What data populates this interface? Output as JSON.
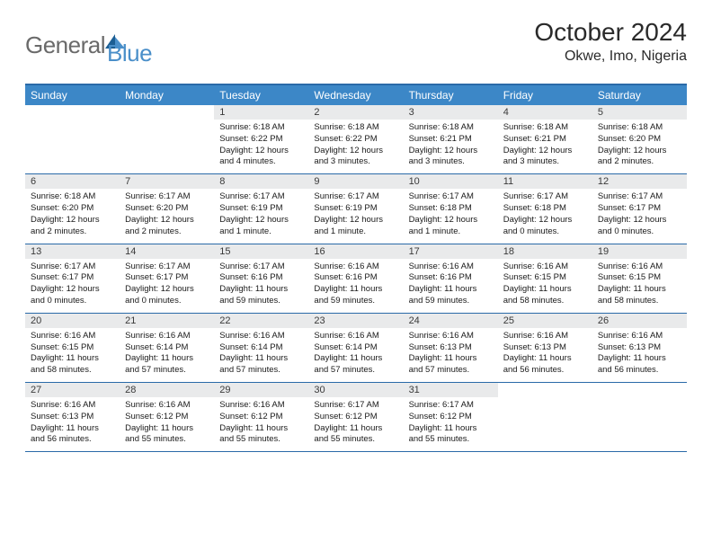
{
  "brand": {
    "text_gray": "General",
    "text_blue": "Blue"
  },
  "header": {
    "title": "October 2024",
    "subtitle": "Okwe, Imo, Nigeria"
  },
  "colors": {
    "header_bg": "#3c87c7",
    "header_text": "#ffffff",
    "daynum_bg": "#e9eaeb",
    "rule": "#2a6aa8",
    "logo_gray": "#6a6a6a",
    "logo_blue": "#4a8fc9",
    "sail_dark": "#1c5e93",
    "sail_light": "#4a8fc9"
  },
  "weekdays": [
    "Sunday",
    "Monday",
    "Tuesday",
    "Wednesday",
    "Thursday",
    "Friday",
    "Saturday"
  ],
  "weeks": [
    [
      null,
      null,
      {
        "n": "1",
        "sr": "6:18 AM",
        "ss": "6:22 PM",
        "dl": "12 hours and 4 minutes."
      },
      {
        "n": "2",
        "sr": "6:18 AM",
        "ss": "6:22 PM",
        "dl": "12 hours and 3 minutes."
      },
      {
        "n": "3",
        "sr": "6:18 AM",
        "ss": "6:21 PM",
        "dl": "12 hours and 3 minutes."
      },
      {
        "n": "4",
        "sr": "6:18 AM",
        "ss": "6:21 PM",
        "dl": "12 hours and 3 minutes."
      },
      {
        "n": "5",
        "sr": "6:18 AM",
        "ss": "6:20 PM",
        "dl": "12 hours and 2 minutes."
      }
    ],
    [
      {
        "n": "6",
        "sr": "6:18 AM",
        "ss": "6:20 PM",
        "dl": "12 hours and 2 minutes."
      },
      {
        "n": "7",
        "sr": "6:17 AM",
        "ss": "6:20 PM",
        "dl": "12 hours and 2 minutes."
      },
      {
        "n": "8",
        "sr": "6:17 AM",
        "ss": "6:19 PM",
        "dl": "12 hours and 1 minute."
      },
      {
        "n": "9",
        "sr": "6:17 AM",
        "ss": "6:19 PM",
        "dl": "12 hours and 1 minute."
      },
      {
        "n": "10",
        "sr": "6:17 AM",
        "ss": "6:18 PM",
        "dl": "12 hours and 1 minute."
      },
      {
        "n": "11",
        "sr": "6:17 AM",
        "ss": "6:18 PM",
        "dl": "12 hours and 0 minutes."
      },
      {
        "n": "12",
        "sr": "6:17 AM",
        "ss": "6:17 PM",
        "dl": "12 hours and 0 minutes."
      }
    ],
    [
      {
        "n": "13",
        "sr": "6:17 AM",
        "ss": "6:17 PM",
        "dl": "12 hours and 0 minutes."
      },
      {
        "n": "14",
        "sr": "6:17 AM",
        "ss": "6:17 PM",
        "dl": "12 hours and 0 minutes."
      },
      {
        "n": "15",
        "sr": "6:17 AM",
        "ss": "6:16 PM",
        "dl": "11 hours and 59 minutes."
      },
      {
        "n": "16",
        "sr": "6:16 AM",
        "ss": "6:16 PM",
        "dl": "11 hours and 59 minutes."
      },
      {
        "n": "17",
        "sr": "6:16 AM",
        "ss": "6:16 PM",
        "dl": "11 hours and 59 minutes."
      },
      {
        "n": "18",
        "sr": "6:16 AM",
        "ss": "6:15 PM",
        "dl": "11 hours and 58 minutes."
      },
      {
        "n": "19",
        "sr": "6:16 AM",
        "ss": "6:15 PM",
        "dl": "11 hours and 58 minutes."
      }
    ],
    [
      {
        "n": "20",
        "sr": "6:16 AM",
        "ss": "6:15 PM",
        "dl": "11 hours and 58 minutes."
      },
      {
        "n": "21",
        "sr": "6:16 AM",
        "ss": "6:14 PM",
        "dl": "11 hours and 57 minutes."
      },
      {
        "n": "22",
        "sr": "6:16 AM",
        "ss": "6:14 PM",
        "dl": "11 hours and 57 minutes."
      },
      {
        "n": "23",
        "sr": "6:16 AM",
        "ss": "6:14 PM",
        "dl": "11 hours and 57 minutes."
      },
      {
        "n": "24",
        "sr": "6:16 AM",
        "ss": "6:13 PM",
        "dl": "11 hours and 57 minutes."
      },
      {
        "n": "25",
        "sr": "6:16 AM",
        "ss": "6:13 PM",
        "dl": "11 hours and 56 minutes."
      },
      {
        "n": "26",
        "sr": "6:16 AM",
        "ss": "6:13 PM",
        "dl": "11 hours and 56 minutes."
      }
    ],
    [
      {
        "n": "27",
        "sr": "6:16 AM",
        "ss": "6:13 PM",
        "dl": "11 hours and 56 minutes."
      },
      {
        "n": "28",
        "sr": "6:16 AM",
        "ss": "6:12 PM",
        "dl": "11 hours and 55 minutes."
      },
      {
        "n": "29",
        "sr": "6:16 AM",
        "ss": "6:12 PM",
        "dl": "11 hours and 55 minutes."
      },
      {
        "n": "30",
        "sr": "6:17 AM",
        "ss": "6:12 PM",
        "dl": "11 hours and 55 minutes."
      },
      {
        "n": "31",
        "sr": "6:17 AM",
        "ss": "6:12 PM",
        "dl": "11 hours and 55 minutes."
      },
      null,
      null
    ]
  ],
  "labels": {
    "sunrise": "Sunrise:",
    "sunset": "Sunset:",
    "daylight": "Daylight:"
  }
}
